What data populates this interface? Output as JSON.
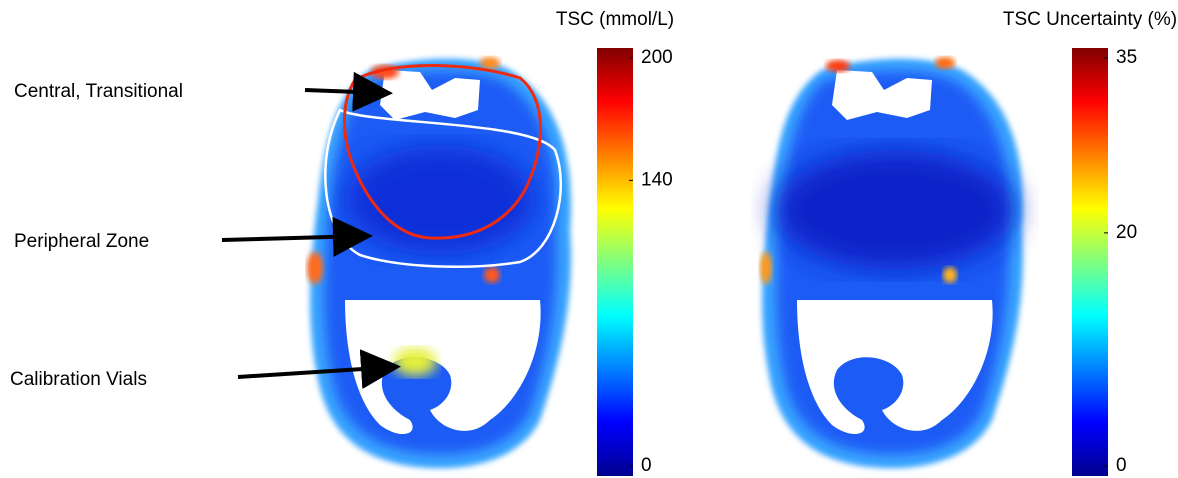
{
  "figure": {
    "annotations": [
      "Central, Transitional",
      "Peripheral Zone",
      "Calibration Vials"
    ],
    "colorbars": [
      {
        "title": "TSC (mmol/L)",
        "lim": [
          0,
          200
        ],
        "ticks": [
          0,
          140,
          200
        ]
      },
      {
        "title": "TSC Uncertainty (%)",
        "lim": [
          0,
          35
        ],
        "ticks": [
          0,
          20,
          35
        ]
      }
    ]
  }
}
